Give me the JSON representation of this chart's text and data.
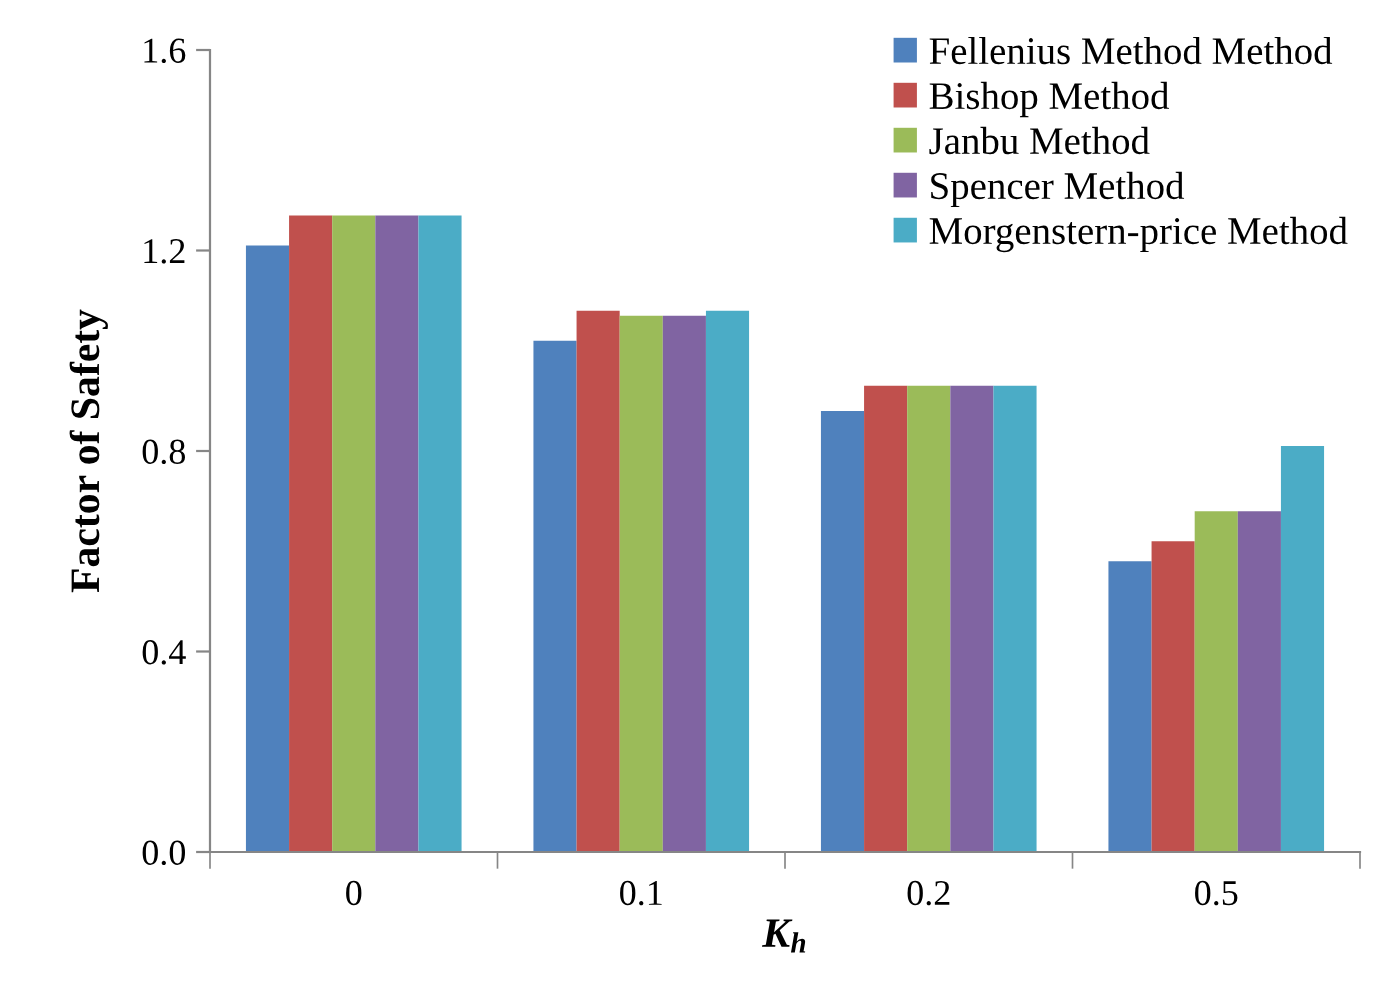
{
  "chart_data": {
    "type": "bar",
    "xlabel": "K$_{h}$",
    "ylabel": "Factor of Safety",
    "categories": [
      "0",
      "0.1",
      "0.2",
      "0.5"
    ],
    "series": [
      {
        "name": "Fellenius Method Method",
        "color": "#4f81bd",
        "values": [
          1.21,
          1.02,
          0.88,
          0.58
        ]
      },
      {
        "name": "Bishop Method",
        "color": "#c0504d",
        "values": [
          1.27,
          1.08,
          0.93,
          0.62
        ]
      },
      {
        "name": "Janbu Method",
        "color": "#9bbb59",
        "values": [
          1.27,
          1.07,
          0.93,
          0.68
        ]
      },
      {
        "name": "Spencer Method",
        "color": "#8064a2",
        "values": [
          1.27,
          1.07,
          0.93,
          0.68
        ]
      },
      {
        "name": "Morgenstern-price Method",
        "color": "#4bacc6",
        "values": [
          1.27,
          1.08,
          0.93,
          0.81
        ]
      }
    ],
    "ylim": [
      0,
      1.6
    ],
    "yticks": [
      {
        "value": 0,
        "label": "0.0"
      },
      {
        "value": 0.4,
        "label": "0.4"
      },
      {
        "value": 0.8,
        "label": "0.8"
      },
      {
        "value": 1.2,
        "label": "1.2"
      },
      {
        "value": 1.6,
        "label": "1.6"
      }
    ],
    "grid": false,
    "legend": "top right"
  }
}
